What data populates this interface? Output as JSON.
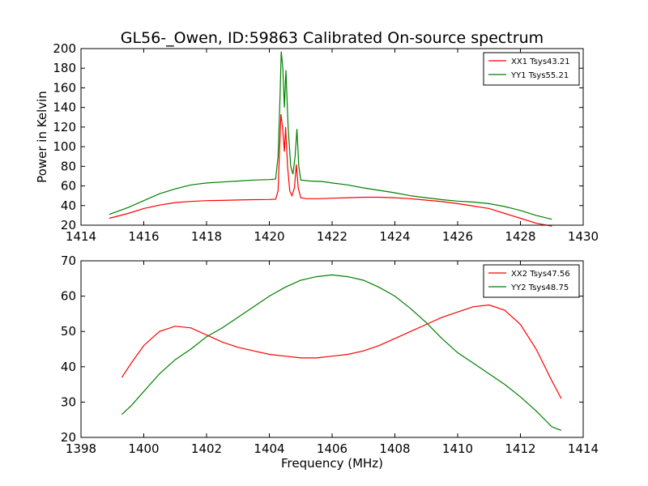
{
  "figure": {
    "title": "GL56-_Owen, ID:59863 Calibrated On-source spectrum",
    "xlabel": "Frequency (MHz)"
  },
  "colors": {
    "red": "#ff0000",
    "green": "#008000"
  },
  "chart_data": [
    {
      "type": "line",
      "ylabel": "Power in Kelvin",
      "xlim": [
        1414,
        1430
      ],
      "ylim": [
        20,
        200
      ],
      "xticks": [
        1414,
        1416,
        1418,
        1420,
        1422,
        1424,
        1426,
        1428,
        1430
      ],
      "yticks": [
        20,
        40,
        60,
        80,
        100,
        120,
        140,
        160,
        180,
        200
      ],
      "legend": "top-right",
      "series": [
        {
          "name": "XX1 Tsys43.21",
          "color": "#ff0000",
          "points": [
            [
              1414.9,
              27
            ],
            [
              1415.5,
              32
            ],
            [
              1416,
              37
            ],
            [
              1416.5,
              40.5
            ],
            [
              1417,
              43
            ],
            [
              1417.5,
              44.2
            ],
            [
              1418,
              45
            ],
            [
              1418.5,
              45.3
            ],
            [
              1419,
              45.7
            ],
            [
              1419.5,
              46
            ],
            [
              1420,
              46.2
            ],
            [
              1420.2,
              46.5
            ],
            [
              1420.28,
              55
            ],
            [
              1420.33,
              100
            ],
            [
              1420.37,
              133
            ],
            [
              1420.42,
              120
            ],
            [
              1420.48,
              95
            ],
            [
              1420.52,
              120
            ],
            [
              1420.58,
              80
            ],
            [
              1420.65,
              55
            ],
            [
              1420.72,
              50
            ],
            [
              1420.8,
              58
            ],
            [
              1420.86,
              82
            ],
            [
              1420.92,
              58
            ],
            [
              1421,
              48
            ],
            [
              1421.2,
              47
            ],
            [
              1421.6,
              47
            ],
            [
              1422,
              47.5
            ],
            [
              1422.5,
              48
            ],
            [
              1423,
              48.5
            ],
            [
              1423.5,
              48.5
            ],
            [
              1424,
              48
            ],
            [
              1424.5,
              47
            ],
            [
              1425,
              45.5
            ],
            [
              1425.5,
              44
            ],
            [
              1426,
              42
            ],
            [
              1426.5,
              39.5
            ],
            [
              1427,
              37
            ],
            [
              1427.5,
              32
            ],
            [
              1428,
              27
            ],
            [
              1428.5,
              22
            ],
            [
              1429,
              19
            ]
          ]
        },
        {
          "name": "YY1 Tsys55.21",
          "color": "#008000",
          "points": [
            [
              1414.9,
              31
            ],
            [
              1415.5,
              38
            ],
            [
              1416,
              45
            ],
            [
              1416.5,
              52
            ],
            [
              1417,
              57
            ],
            [
              1417.5,
              61
            ],
            [
              1418,
              63
            ],
            [
              1418.5,
              64
            ],
            [
              1419,
              65
            ],
            [
              1419.5,
              66
            ],
            [
              1420,
              66.5
            ],
            [
              1420.2,
              67
            ],
            [
              1420.28,
              90
            ],
            [
              1420.34,
              150
            ],
            [
              1420.38,
              197
            ],
            [
              1420.43,
              180
            ],
            [
              1420.48,
              140
            ],
            [
              1420.53,
              178
            ],
            [
              1420.6,
              120
            ],
            [
              1420.68,
              80
            ],
            [
              1420.75,
              72
            ],
            [
              1420.82,
              90
            ],
            [
              1420.88,
              118
            ],
            [
              1420.94,
              80
            ],
            [
              1421,
              66
            ],
            [
              1421.3,
              65
            ],
            [
              1421.7,
              64.5
            ],
            [
              1422,
              63
            ],
            [
              1422.5,
              61
            ],
            [
              1423,
              58
            ],
            [
              1423.5,
              55.5
            ],
            [
              1424,
              53
            ],
            [
              1424.5,
              50
            ],
            [
              1425,
              48
            ],
            [
              1425.5,
              46
            ],
            [
              1426,
              44.5
            ],
            [
              1426.5,
              43.5
            ],
            [
              1427,
              42
            ],
            [
              1427.5,
              39
            ],
            [
              1428,
              35
            ],
            [
              1428.5,
              30
            ],
            [
              1429,
              26
            ]
          ]
        }
      ]
    },
    {
      "type": "line",
      "ylabel": "",
      "xlim": [
        1398,
        1414
      ],
      "ylim": [
        20,
        70
      ],
      "xticks": [
        1398,
        1400,
        1402,
        1404,
        1406,
        1408,
        1410,
        1412,
        1414
      ],
      "yticks": [
        20,
        30,
        40,
        50,
        60,
        70
      ],
      "legend": "top-right",
      "series": [
        {
          "name": "XX2 Tsys47.56",
          "color": "#ff0000",
          "points": [
            [
              1399.3,
              37
            ],
            [
              1399.6,
              41
            ],
            [
              1400,
              46
            ],
            [
              1400.5,
              50
            ],
            [
              1401,
              51.5
            ],
            [
              1401.5,
              51
            ],
            [
              1402,
              49
            ],
            [
              1402.5,
              47
            ],
            [
              1403,
              45.5
            ],
            [
              1403.5,
              44.5
            ],
            [
              1404,
              43.5
            ],
            [
              1404.5,
              43
            ],
            [
              1405,
              42.5
            ],
            [
              1405.5,
              42.5
            ],
            [
              1406,
              43
            ],
            [
              1406.5,
              43.5
            ],
            [
              1407,
              44.5
            ],
            [
              1407.5,
              46
            ],
            [
              1408,
              48
            ],
            [
              1408.5,
              50
            ],
            [
              1409,
              52
            ],
            [
              1409.5,
              54
            ],
            [
              1410,
              55.5
            ],
            [
              1410.5,
              57
            ],
            [
              1411,
              57.5
            ],
            [
              1411.5,
              56
            ],
            [
              1412,
              52
            ],
            [
              1412.5,
              45
            ],
            [
              1413,
              36
            ],
            [
              1413.3,
              31
            ]
          ]
        },
        {
          "name": "YY2 Tsys48.75",
          "color": "#008000",
          "points": [
            [
              1399.3,
              26.5
            ],
            [
              1399.6,
              29
            ],
            [
              1400,
              33
            ],
            [
              1400.5,
              38
            ],
            [
              1401,
              42
            ],
            [
              1401.5,
              45
            ],
            [
              1402,
              48.5
            ],
            [
              1402.5,
              51
            ],
            [
              1403,
              54
            ],
            [
              1403.5,
              57
            ],
            [
              1404,
              60
            ],
            [
              1404.5,
              62.5
            ],
            [
              1405,
              64.5
            ],
            [
              1405.5,
              65.5
            ],
            [
              1406,
              66
            ],
            [
              1406.5,
              65.5
            ],
            [
              1407,
              64.5
            ],
            [
              1407.5,
              62.5
            ],
            [
              1408,
              60
            ],
            [
              1408.5,
              56.5
            ],
            [
              1409,
              52.5
            ],
            [
              1409.5,
              48
            ],
            [
              1410,
              44
            ],
            [
              1410.5,
              41
            ],
            [
              1411,
              38
            ],
            [
              1411.5,
              35
            ],
            [
              1412,
              31.5
            ],
            [
              1412.5,
              27.5
            ],
            [
              1413,
              23
            ],
            [
              1413.3,
              22
            ]
          ]
        }
      ]
    }
  ]
}
